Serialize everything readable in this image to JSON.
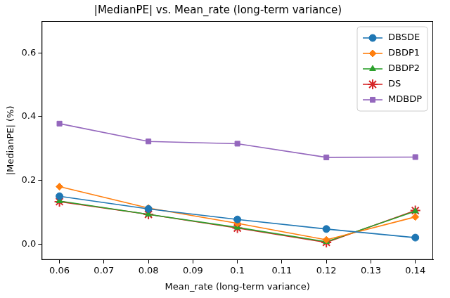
{
  "chart_data": {
    "type": "line",
    "title": "|MedianPE| vs. Mean_rate (long-term variance)",
    "x_label": "Mean_rate (long-term variance)",
    "y_label": "|MedianPE| (%)",
    "x": [
      0.06,
      0.08,
      0.1,
      0.12,
      0.14
    ],
    "xlim": [
      0.056,
      0.144
    ],
    "xticks": [
      0.06,
      0.07,
      0.08,
      0.09,
      0.1,
      0.11,
      0.12,
      0.13,
      0.14
    ],
    "ylim": [
      -0.05,
      0.7
    ],
    "yticks": [
      {
        "value": 0,
        "label": "0.0"
      },
      {
        "value": 0.2,
        "label": "0.2"
      },
      {
        "value": 0.4,
        "label": "0.4"
      },
      {
        "value": 0.6,
        "label": "0.6"
      }
    ],
    "grid": false,
    "legend": "upper right",
    "series": [
      {
        "name": "DBSDE",
        "color": "#1f77b4",
        "marker": "circle",
        "values": [
          0.15,
          0.11,
          0.077,
          0.047,
          0.02
        ]
      },
      {
        "name": "DBDP1",
        "color": "#ff7f0e",
        "marker": "diamond",
        "values": [
          0.18,
          0.113,
          0.065,
          0.013,
          0.085
        ]
      },
      {
        "name": "DBDP2",
        "color": "#2ca02c",
        "marker": "triangle",
        "values": [
          0.135,
          0.093,
          0.052,
          0.007,
          0.103
        ]
      },
      {
        "name": "DS",
        "color": "#d62728",
        "marker": "star",
        "values": [
          0.133,
          0.093,
          0.05,
          0.005,
          0.105
        ]
      },
      {
        "name": "MDBDP",
        "color": "#9467bd",
        "marker": "square",
        "values": [
          0.378,
          0.322,
          0.315,
          0.272,
          0.273
        ]
      }
    ]
  }
}
